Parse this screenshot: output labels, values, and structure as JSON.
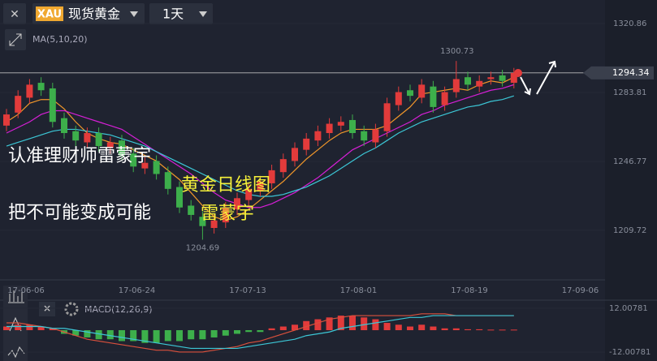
{
  "toolbar": {
    "symbol": "XAU",
    "name": "现货黄金",
    "period": "1天"
  },
  "chart_data": {
    "type": "candlestick",
    "indicator": "MA(5,10,20)",
    "open": [
      1266,
      1273,
      1281,
      1289,
      1286,
      1270,
      1263,
      1257,
      1262,
      1254,
      1258,
      1251,
      1243,
      1247,
      1241,
      1233,
      1223,
      1217,
      1211,
      1214,
      1221,
      1226,
      1231,
      1235,
      1241,
      1247,
      1253,
      1258,
      1262,
      1266,
      1269,
      1263,
      1257,
      1263,
      1277,
      1285,
      1281,
      1287,
      1277,
      1284,
      1292,
      1287,
      1291,
      1293,
      1289
    ],
    "high": [
      1275,
      1285,
      1291,
      1292,
      1289,
      1273,
      1266,
      1265,
      1265,
      1260,
      1261,
      1254,
      1249,
      1250,
      1244,
      1236,
      1226,
      1220,
      1218,
      1225,
      1230,
      1235,
      1239,
      1245,
      1251,
      1257,
      1262,
      1266,
      1270,
      1271,
      1272,
      1266,
      1267,
      1281,
      1287,
      1288,
      1291,
      1290,
      1287,
      1300.73,
      1295,
      1293,
      1295,
      1296,
      1297
    ],
    "low": [
      1263,
      1270,
      1278,
      1282,
      1265,
      1259,
      1255,
      1254,
      1252,
      1251,
      1247,
      1241,
      1240,
      1237,
      1229,
      1219,
      1215,
      1204.69,
      1208,
      1211,
      1218,
      1223,
      1228,
      1232,
      1238,
      1244,
      1250,
      1255,
      1259,
      1263,
      1259,
      1255,
      1254,
      1260,
      1274,
      1279,
      1278,
      1273,
      1274,
      1281,
      1285,
      1284,
      1288,
      1287,
      1286
    ],
    "close": [
      1272,
      1282,
      1288,
      1285,
      1268,
      1262,
      1258,
      1262,
      1255,
      1257,
      1250,
      1244,
      1246,
      1240,
      1232,
      1222,
      1218,
      1212,
      1215,
      1222,
      1227,
      1232,
      1236,
      1242,
      1248,
      1254,
      1259,
      1263,
      1267,
      1268,
      1262,
      1258,
      1264,
      1278,
      1284,
      1282,
      1288,
      1276,
      1284,
      1291,
      1288,
      1290,
      1292,
      1290,
      1294.34
    ],
    "up_color": "#e23b3b",
    "down_color": "#3daf4b",
    "ma": [
      {
        "color": "#f0962a",
        "values": [
          1268,
          1272,
          1278,
          1280,
          1280,
          1275,
          1268,
          1262,
          1259,
          1257,
          1256,
          1253,
          1250,
          1247,
          1242,
          1237,
          1230,
          1223,
          1217,
          1215,
          1217,
          1221,
          1226,
          1231,
          1236,
          1242,
          1248,
          1253,
          1258,
          1262,
          1264,
          1264,
          1264,
          1266,
          1271,
          1276,
          1283,
          1284,
          1285,
          1286,
          1285,
          1288,
          1290,
          1289,
          1292
        ]
      },
      {
        "color": "#d61fd6",
        "values": [
          1262,
          1265,
          1268,
          1272,
          1274,
          1274,
          1272,
          1270,
          1268,
          1266,
          1264,
          1260,
          1256,
          1252,
          1248,
          1244,
          1240,
          1235,
          1230,
          1226,
          1224,
          1222,
          1222,
          1224,
          1227,
          1230,
          1234,
          1238,
          1243,
          1248,
          1253,
          1256,
          1259,
          1262,
          1265,
          1268,
          1272,
          1274,
          1277,
          1279,
          1281,
          1283,
          1285,
          1286,
          1288
        ]
      },
      {
        "color": "#3cc7d6",
        "values": [
          1255,
          1257,
          1259,
          1261,
          1263,
          1264,
          1264,
          1263,
          1262,
          1261,
          1259,
          1257,
          1255,
          1252,
          1249,
          1246,
          1243,
          1240,
          1237,
          1234,
          1231,
          1229,
          1228,
          1228,
          1229,
          1231,
          1233,
          1236,
          1239,
          1243,
          1247,
          1251,
          1254,
          1258,
          1262,
          1265,
          1268,
          1270,
          1272,
          1274,
          1276,
          1277,
          1279,
          1280,
          1282
        ]
      }
    ],
    "ylim": [
      1183.1,
      1333.5
    ],
    "yticks": [
      1320.86,
      1283.81,
      1246.77,
      1209.72
    ],
    "x_labels": [
      "17-06-06",
      "17-06-24",
      "17-07-13",
      "17-08-01",
      "17-08-19",
      "17-09-06"
    ],
    "annotations": [
      "认准理财师雷蒙宇",
      "把不可能变成可能",
      "黄金日线图",
      "雷蒙宇"
    ],
    "macd": {
      "title": "MACD(12,26,9)",
      "hist": [
        2,
        3,
        3,
        2,
        1,
        -2,
        -3,
        -4,
        -5,
        -5,
        -6,
        -6,
        -7,
        -7,
        -6,
        -6,
        -5,
        -5,
        -4,
        -3,
        -2,
        -1,
        -1,
        1,
        2,
        3,
        5,
        6,
        7,
        8,
        8,
        7,
        6,
        4,
        3,
        2,
        3,
        2,
        1,
        1,
        0.5,
        0.5,
        0.3,
        0.3,
        0.3
      ],
      "dif": [
        4,
        4,
        3,
        2,
        1,
        -1,
        -3,
        -5,
        -6,
        -7,
        -8,
        -9,
        -10,
        -11,
        -11,
        -12,
        -12,
        -12,
        -11,
        -10,
        -9,
        -7,
        -6,
        -4,
        -2,
        0,
        2,
        4,
        6,
        7,
        8,
        8,
        8,
        8,
        8,
        8,
        9,
        9,
        9,
        8,
        8,
        8,
        8,
        8,
        8
      ],
      "dea": [
        2,
        2,
        2,
        2,
        1,
        1,
        0,
        -1,
        -2,
        -3,
        -4,
        -5,
        -6,
        -7,
        -8,
        -9,
        -10,
        -10,
        -10,
        -10,
        -10,
        -9,
        -8,
        -7,
        -6,
        -5,
        -3,
        -2,
        -1,
        1,
        2,
        3,
        4,
        5,
        6,
        7,
        7,
        8,
        8,
        8,
        8,
        8,
        8,
        8,
        8
      ],
      "dif_color": "#d9503c",
      "dea_color": "#3cc7d6",
      "ylim": [
        -15.6,
        15.6
      ],
      "yticks": [
        12.00781,
        -12.00781
      ]
    }
  }
}
